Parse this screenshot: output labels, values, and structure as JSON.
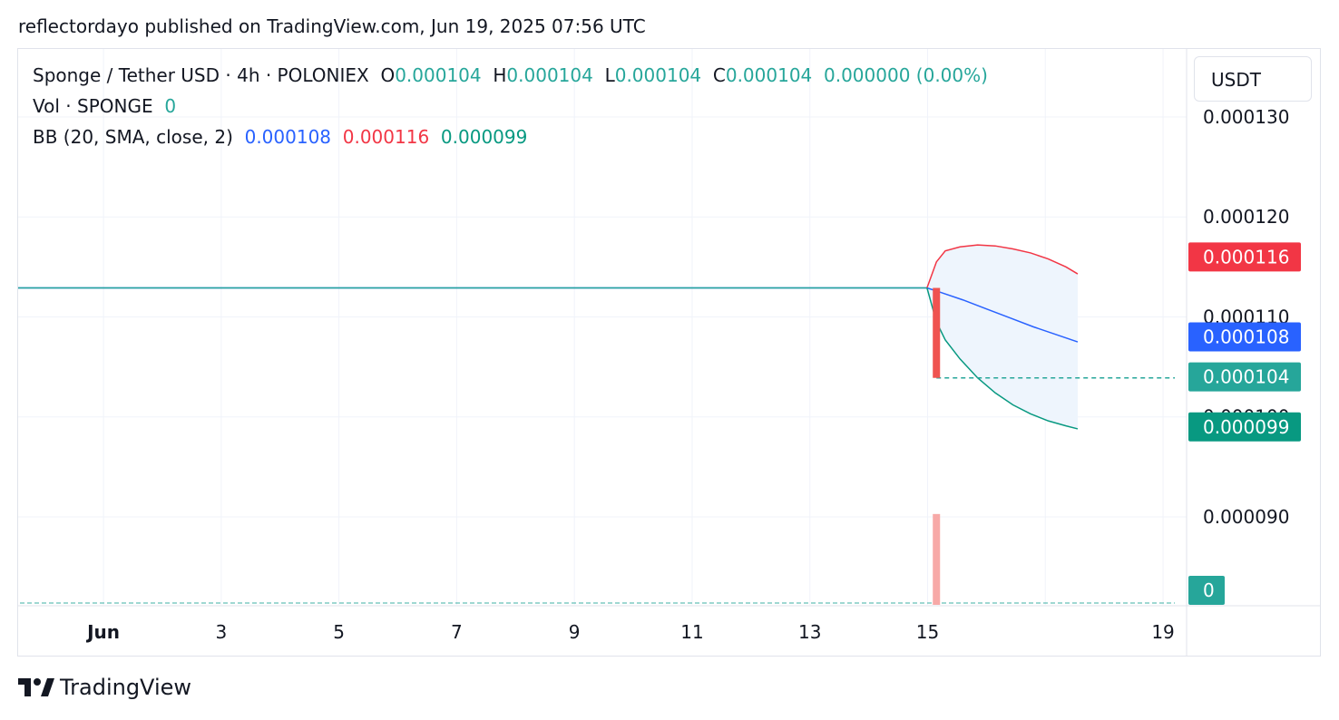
{
  "header": {
    "published_text": "reflectordayo published on TradingView.com, Jun 19, 2025 07:56 UTC"
  },
  "legend": {
    "symbol": "Sponge / Tether USD · 4h · POLONIEX",
    "o_label": "O",
    "o_value": "0.000104",
    "h_label": "H",
    "h_value": "0.000104",
    "l_label": "L",
    "l_value": "0.000104",
    "c_label": "C",
    "c_value": "0.000104",
    "change": "0.000000 (0.00%)",
    "vol_label": "Vol · SPONGE",
    "vol_value": "0",
    "bb_label": "BB (20, SMA, close, 2)",
    "bb_basis": "0.000108",
    "bb_upper": "0.000116",
    "bb_lower": "0.000099"
  },
  "currency": "USDT",
  "footer": {
    "brand": "TradingView"
  },
  "colors": {
    "up": "#26a69a",
    "down": "#ef5350",
    "basis": "#2962ff",
    "upper": "#f23645",
    "lower": "#089981",
    "fill": "#eef5fd",
    "grid": "#f0f3fa",
    "volume_down": "#f7a9a7"
  },
  "chart_data": {
    "type": "line",
    "y_axis": {
      "ticks": [
        {
          "value": 0.00013,
          "label": "0.000130"
        },
        {
          "value": 0.00012,
          "label": "0.000120"
        },
        {
          "value": 0.00011,
          "label": "0.000110"
        },
        {
          "value": 0.0001,
          "label": "0.000100"
        },
        {
          "value": 9e-05,
          "label": "0.000090"
        }
      ],
      "range": [
        8.12e-05,
        0.0001368
      ]
    },
    "x_axis": {
      "ticks": [
        {
          "day": 1,
          "label": "Jun",
          "bold": true
        },
        {
          "day": 3,
          "label": "3"
        },
        {
          "day": 5,
          "label": "5"
        },
        {
          "day": 7,
          "label": "7"
        },
        {
          "day": 9,
          "label": "9"
        },
        {
          "day": 11,
          "label": "11"
        },
        {
          "day": 13,
          "label": "13"
        },
        {
          "day": 15,
          "label": "15"
        },
        {
          "day": 17,
          "label": ""
        },
        {
          "day": 19,
          "label": "19"
        }
      ],
      "range": [
        -0.45,
        19.4
      ]
    },
    "price_line": {
      "points": [
        [
          -0.45,
          0.0001129
        ],
        [
          14.99,
          0.0001129
        ]
      ]
    },
    "candle": {
      "day": 15.15,
      "open": 0.0001129,
      "close": 0.0001039,
      "high": 0.0001129,
      "low": 0.0001039
    },
    "last_price_line": {
      "from_day": 15.15,
      "to_day": 19.2,
      "value": 0.0001039
    },
    "bb_upper": [
      [
        14.99,
        0.0001129
      ],
      [
        15.15,
        0.0001155
      ],
      [
        15.3,
        0.0001166
      ],
      [
        15.55,
        0.000117
      ],
      [
        15.85,
        0.0001172
      ],
      [
        16.15,
        0.0001171
      ],
      [
        16.45,
        0.0001168
      ],
      [
        16.75,
        0.0001164
      ],
      [
        17.05,
        0.0001158
      ],
      [
        17.35,
        0.000115
      ],
      [
        17.55,
        0.0001143
      ]
    ],
    "bb_basis": [
      [
        14.99,
        0.0001129
      ],
      [
        15.2,
        0.0001125
      ],
      [
        15.6,
        0.0001117
      ],
      [
        16.0,
        0.0001108
      ],
      [
        16.4,
        0.0001099
      ],
      [
        16.8,
        0.000109
      ],
      [
        17.2,
        0.0001082
      ],
      [
        17.55,
        0.0001075
      ]
    ],
    "bb_lower": [
      [
        14.99,
        0.0001129
      ],
      [
        15.15,
        0.0001095
      ],
      [
        15.3,
        0.0001077
      ],
      [
        15.55,
        0.0001058
      ],
      [
        15.85,
        0.0001039
      ],
      [
        16.15,
        0.0001024
      ],
      [
        16.45,
        0.0001012
      ],
      [
        16.75,
        0.0001003
      ],
      [
        17.05,
        9.96e-05
      ],
      [
        17.35,
        9.91e-05
      ],
      [
        17.55,
        9.88e-05
      ]
    ],
    "volume": {
      "day": 15.15,
      "value": 1,
      "max": 1.53
    },
    "price_labels": [
      {
        "value": 0.000116,
        "label": "0.000116",
        "color": "#f23645"
      },
      {
        "value": 0.000108,
        "label": "0.000108",
        "color": "#2962ff"
      },
      {
        "value": 0.000104,
        "label": "0.000104",
        "color": "#26a69a"
      },
      {
        "value": 9.9e-05,
        "label": "0.000099",
        "color": "#089981"
      }
    ],
    "volume_label": "0"
  }
}
